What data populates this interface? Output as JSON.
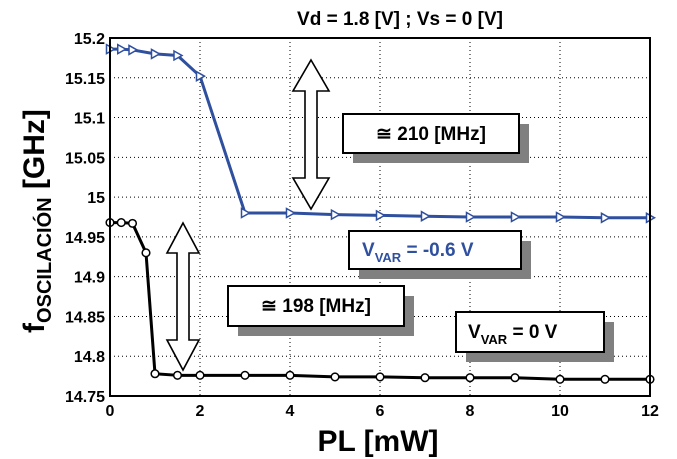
{
  "colors": {
    "series_blue": "#2f4f9f",
    "series_black": "#000000",
    "shadow": "#808080",
    "grid": "#000000"
  },
  "chart_data": {
    "type": "line",
    "title": "Vd = 1.8 [V]  ;  Vs = 0 [V]",
    "xlabel": "PL [mW]",
    "ylabel": {
      "main": "f",
      "sub": "OSCILACIÓN",
      "unit": " [GHz]"
    },
    "xlim": [
      0,
      12
    ],
    "ylim": [
      14.75,
      15.2
    ],
    "xticks": [
      "0",
      "2",
      "4",
      "6",
      "8",
      "10",
      "12"
    ],
    "yticks": [
      "15.2",
      "15.15",
      "15.1",
      "15.05",
      "15",
      "14.95",
      "14.9",
      "14.85",
      "14.8",
      "14.75"
    ],
    "grid": true,
    "series": [
      {
        "marker": "triangle-right",
        "color": "#2f4f9f",
        "x": [
          0,
          0.25,
          0.5,
          1,
          1.5,
          2,
          3,
          4,
          5,
          6,
          7,
          8,
          9,
          10,
          11,
          12
        ],
        "y": [
          15.186,
          15.186,
          15.185,
          15.18,
          15.178,
          15.152,
          14.98,
          14.98,
          14.978,
          14.977,
          14.976,
          14.975,
          14.975,
          14.975,
          14.974,
          14.974
        ]
      },
      {
        "marker": "circle",
        "color": "#000000",
        "x": [
          0,
          0.25,
          0.5,
          0.8,
          1,
          1.5,
          2,
          3,
          4,
          5,
          6,
          7,
          8,
          9,
          10,
          11,
          12
        ],
        "y": [
          14.968,
          14.968,
          14.967,
          14.93,
          14.778,
          14.776,
          14.776,
          14.776,
          14.776,
          14.774,
          14.774,
          14.773,
          14.773,
          14.773,
          14.771,
          14.771,
          14.771
        ]
      }
    ],
    "annotations": [
      {
        "text": "≅ 210 [MHz]"
      },
      {
        "prefix": "V",
        "sub": "VAR",
        "suffix": " =  -0.6 V"
      },
      {
        "text": "≅ 198 [MHz]"
      },
      {
        "prefix": "V",
        "sub": "VAR",
        "suffix": " =  0  V"
      }
    ]
  }
}
